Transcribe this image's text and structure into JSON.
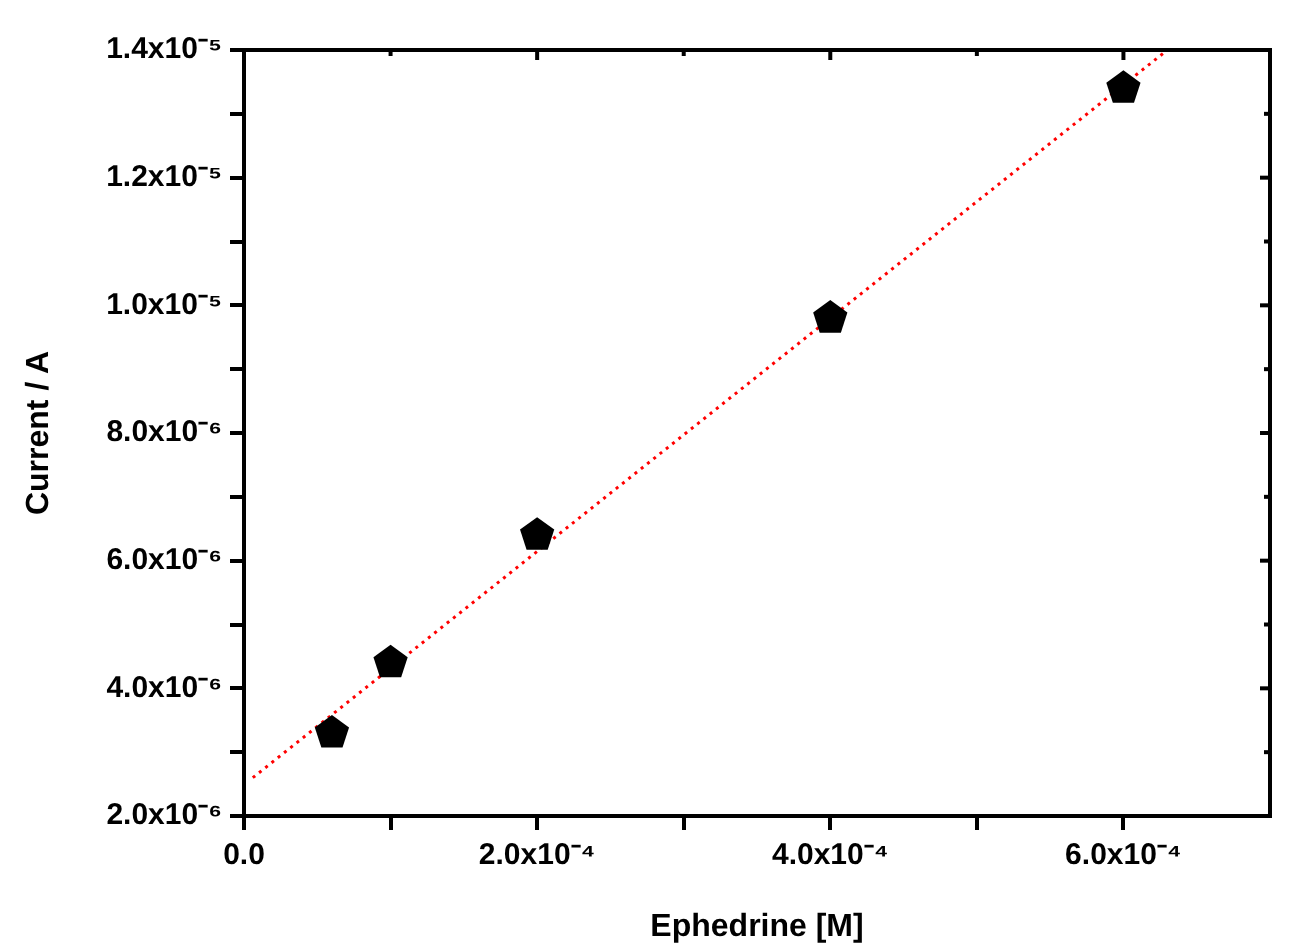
{
  "chart_data": {
    "type": "scatter",
    "xlabel": "Ephedrine [M]",
    "ylabel": "Current / A",
    "x": [
      6e-05,
      0.0001,
      0.0002,
      0.0004,
      0.0006
    ],
    "series": [
      {
        "color": "#000000",
        "values": [
          3.3e-06,
          4.4e-06,
          6.4e-06,
          9.8e-06,
          1.34e-05
        ]
      },
      {
        "type": "line",
        "color": "#ff0000",
        "line_style": "dotted",
        "marker": "none",
        "x": [
          6e-06,
          0.00063
        ],
        "values": [
          2.6e-06,
          1.4e-05
        ]
      }
    ],
    "xlim": [
      0,
      0.0007
    ],
    "xticks": [
      {
        "value": 0,
        "label": "0.0"
      },
      {
        "value": 0.0001,
        "label": null
      },
      {
        "value": 0.0002,
        "label": "2.0x10⁻⁴"
      },
      {
        "value": 0.0003,
        "label": null
      },
      {
        "value": 0.0004,
        "label": "4.0x10⁻⁴"
      },
      {
        "value": 0.0005,
        "label": null
      },
      {
        "value": 0.0006,
        "label": "6.0x10⁻⁴"
      }
    ],
    "ylim": [
      2e-06,
      1.4e-05
    ],
    "yticks": [
      {
        "value": 2e-06,
        "label": "2.0x10⁻⁶"
      },
      {
        "value": 3e-06,
        "label": null
      },
      {
        "value": 4e-06,
        "label": "4.0x10⁻⁶"
      },
      {
        "value": 5e-06,
        "label": null
      },
      {
        "value": 6e-06,
        "label": "6.0x10⁻⁶"
      },
      {
        "value": 7e-06,
        "label": null
      },
      {
        "value": 8e-06,
        "label": "8.0x10⁻⁶"
      },
      {
        "value": 9e-06,
        "label": null
      },
      {
        "value": 1e-05,
        "label": "1.0x10⁻⁵"
      },
      {
        "value": 1.1e-05,
        "label": null
      },
      {
        "value": 1.2e-05,
        "label": "1.2x10⁻⁵"
      },
      {
        "value": 1.3e-05,
        "label": null
      },
      {
        "value": 1.4e-05,
        "label": "1.4x10⁻⁵"
      }
    ],
    "grid": false,
    "legend": false
  }
}
